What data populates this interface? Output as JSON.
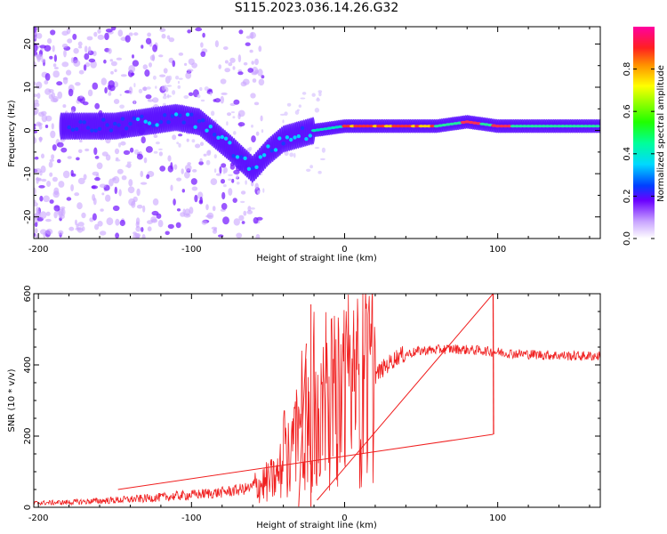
{
  "title": "S115.2023.036.14.26.G32",
  "colors": {
    "snr_line": "#f02020",
    "spectrogram_base": "#6a00ff",
    "ridge_hot": "#ff2050"
  },
  "chart_data": [
    {
      "type": "heatmap",
      "xlabel": "Height of straight line (km)",
      "ylabel": "Frequency (Hz)",
      "xlim": [
        -203,
        167
      ],
      "ylim": [
        -25,
        24
      ],
      "x_ticks": [
        -200,
        -100,
        0,
        100
      ],
      "y_ticks": [
        20,
        10,
        0,
        -10,
        -20
      ],
      "colorbar": {
        "label": "Normalized spectral amplitude",
        "range": [
          0,
          1
        ],
        "ticks": [
          "0.0",
          "0.2",
          "0.4",
          "0.6",
          "0.8"
        ],
        "colormap": "gist_ncar_like"
      },
      "ridge": {
        "description_values": [
          [
            -175,
            1
          ],
          [
            -150,
            1
          ],
          [
            -130,
            2
          ],
          [
            -110,
            3
          ],
          [
            -95,
            2
          ],
          [
            -85,
            -1
          ],
          [
            -75,
            -4
          ],
          [
            -60,
            -9
          ],
          [
            -50,
            -5
          ],
          [
            -40,
            -2
          ],
          [
            -30,
            -1
          ],
          [
            -20,
            0
          ],
          [
            0,
            1
          ],
          [
            20,
            1
          ],
          [
            60,
            1
          ],
          [
            80,
            2
          ],
          [
            100,
            1
          ],
          [
            130,
            1
          ],
          [
            167,
            1
          ]
        ]
      }
    },
    {
      "type": "line",
      "xlabel": "Height of straight line (km)",
      "ylabel": "SNR (10 * v/v)",
      "xlim": [
        -203,
        167
      ],
      "ylim": [
        0,
        600
      ],
      "x_ticks": [
        -200,
        -100,
        0,
        100
      ],
      "y_ticks": [
        0,
        200,
        400,
        600
      ],
      "series": [
        {
          "envelope": [
            [
              -203,
              12
            ],
            [
              -180,
              14
            ],
            [
              -160,
              18
            ],
            [
              -140,
              22
            ],
            [
              -120,
              28
            ],
            [
              -100,
              35
            ],
            [
              -80,
              42
            ],
            [
              -60,
              55
            ],
            [
              -45,
              80
            ],
            [
              -35,
              150
            ],
            [
              -25,
              210
            ],
            [
              -15,
              270
            ],
            [
              -5,
              300
            ],
            [
              5,
              320
            ],
            [
              15,
              350
            ],
            [
              25,
              390
            ],
            [
              35,
              425
            ],
            [
              50,
              440
            ],
            [
              70,
              445
            ],
            [
              90,
              440
            ],
            [
              110,
              432
            ],
            [
              130,
              428
            ],
            [
              150,
              425
            ],
            [
              167,
              425
            ]
          ],
          "spikes": [
            [
              -22,
              570
            ],
            [
              -22,
              2
            ],
            [
              -25,
              460
            ],
            [
              -30,
              2
            ],
            [
              -18,
              20
            ],
            [
              97,
              600
            ],
            [
              97,
              205
            ],
            [
              -148,
              50
            ]
          ]
        }
      ]
    }
  ]
}
